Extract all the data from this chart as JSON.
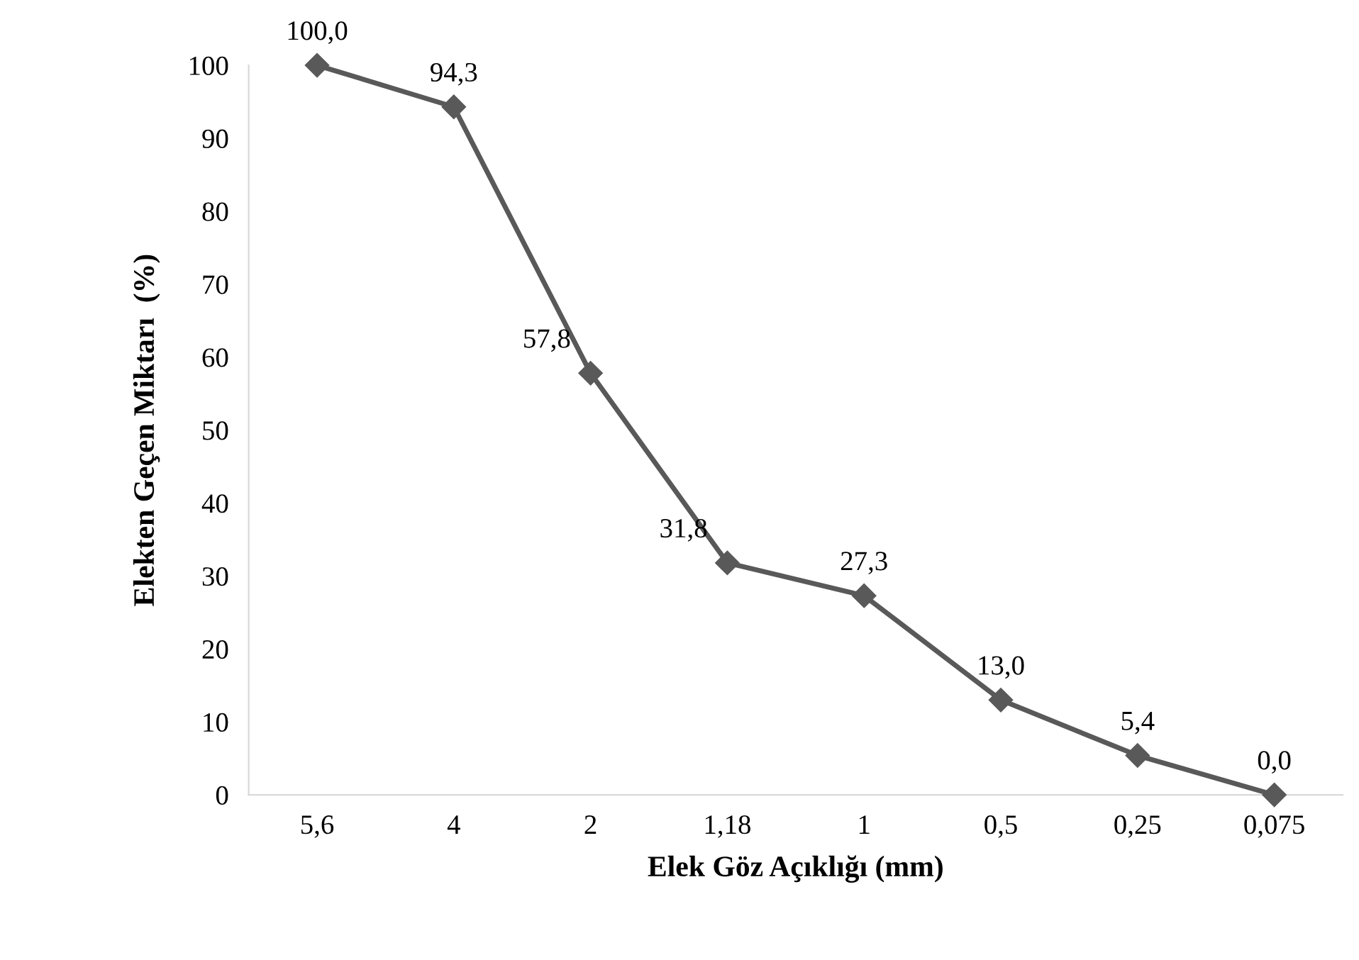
{
  "chart_data": {
    "type": "line",
    "xlabel": "Elek Göz Açıklığı (mm)",
    "ylabel": "Elekten Geçen Miktarı  (%)",
    "categories": [
      "5,6",
      "4",
      "2",
      "1,18",
      "1",
      "0,5",
      "0,25",
      "0,075"
    ],
    "series": [
      {
        "color": "#595959",
        "values": [
          100.0,
          94.3,
          57.8,
          31.8,
          27.3,
          13.0,
          5.4,
          0.0
        ],
        "value_labels": [
          "100,0",
          "94,3",
          "57,8",
          "31,8",
          "27,3",
          "13,0",
          "5,4",
          "0,0"
        ]
      }
    ],
    "ylim": [
      0,
      100
    ],
    "yticks": [
      0,
      10,
      20,
      30,
      40,
      50,
      60,
      70,
      80,
      90,
      100
    ],
    "grid": false,
    "legend": false,
    "marker": "diamond",
    "line_style": "solid"
  }
}
